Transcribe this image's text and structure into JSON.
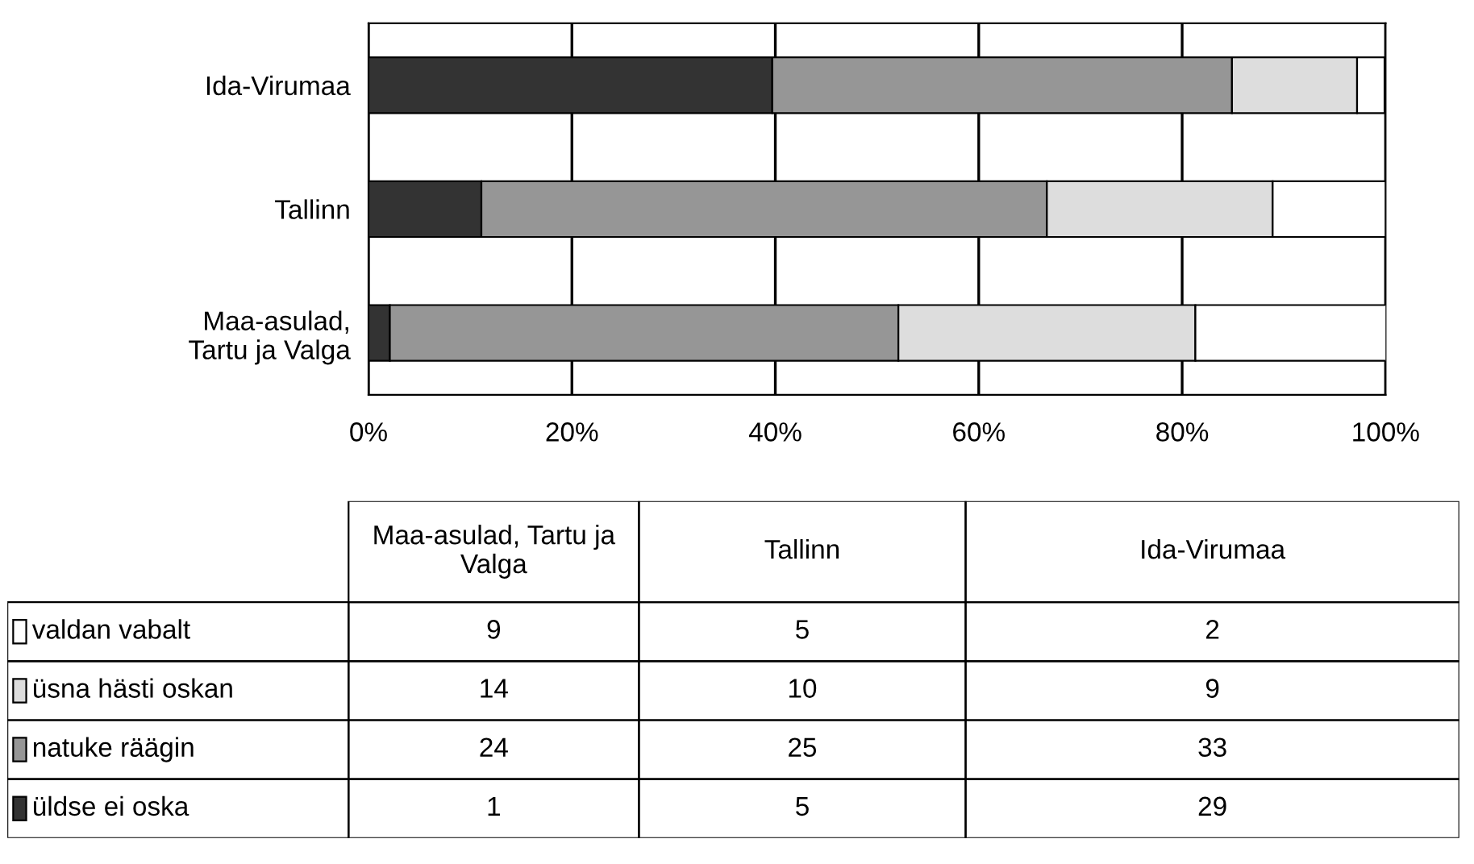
{
  "chart_data": [
    {
      "type": "bar",
      "orientation": "horizontal",
      "stacked": true,
      "categories": [
        "Ida-Virumaa",
        "Tallinn",
        "Maa-asulad, Tartu ja Valga"
      ],
      "series": [
        {
          "color": "#333333",
          "values": [
            39.7,
            11.1,
            2.1
          ]
        },
        {
          "color": "#969696",
          "values": [
            45.2,
            55.6,
            50.0
          ]
        },
        {
          "color": "#dddddd",
          "values": [
            12.3,
            22.2,
            29.2
          ]
        },
        {
          "color": "#ffffff",
          "values": [
            2.7,
            11.1,
            18.8
          ]
        }
      ],
      "xlim": [
        0,
        100
      ],
      "xticks": [
        {
          "value": 0,
          "label": "0%"
        },
        {
          "value": 20,
          "label": "20%"
        },
        {
          "value": 40,
          "label": "40%"
        },
        {
          "value": 60,
          "label": "60%"
        },
        {
          "value": 80,
          "label": "80%"
        },
        {
          "value": 100,
          "label": "100%"
        }
      ],
      "grid": "x"
    },
    {
      "type": "other",
      "categories": [
        "Maa-asulad, Tartu ja Valga",
        "Tallinn",
        "Ida-Virumaa"
      ],
      "series": [
        {
          "name": "valdan vabalt",
          "color": "#ffffff",
          "values": [
            9,
            5,
            2
          ]
        },
        {
          "name": "üsna hästi oskan",
          "color": "#dddddd",
          "values": [
            14,
            10,
            9
          ]
        },
        {
          "name": "natuke räägin",
          "color": "#969696",
          "values": [
            24,
            25,
            33
          ]
        },
        {
          "name": "üldse ei oska",
          "color": "#333333",
          "values": [
            1,
            5,
            29
          ]
        }
      ],
      "data_labels": true,
      "legend": "left"
    }
  ]
}
